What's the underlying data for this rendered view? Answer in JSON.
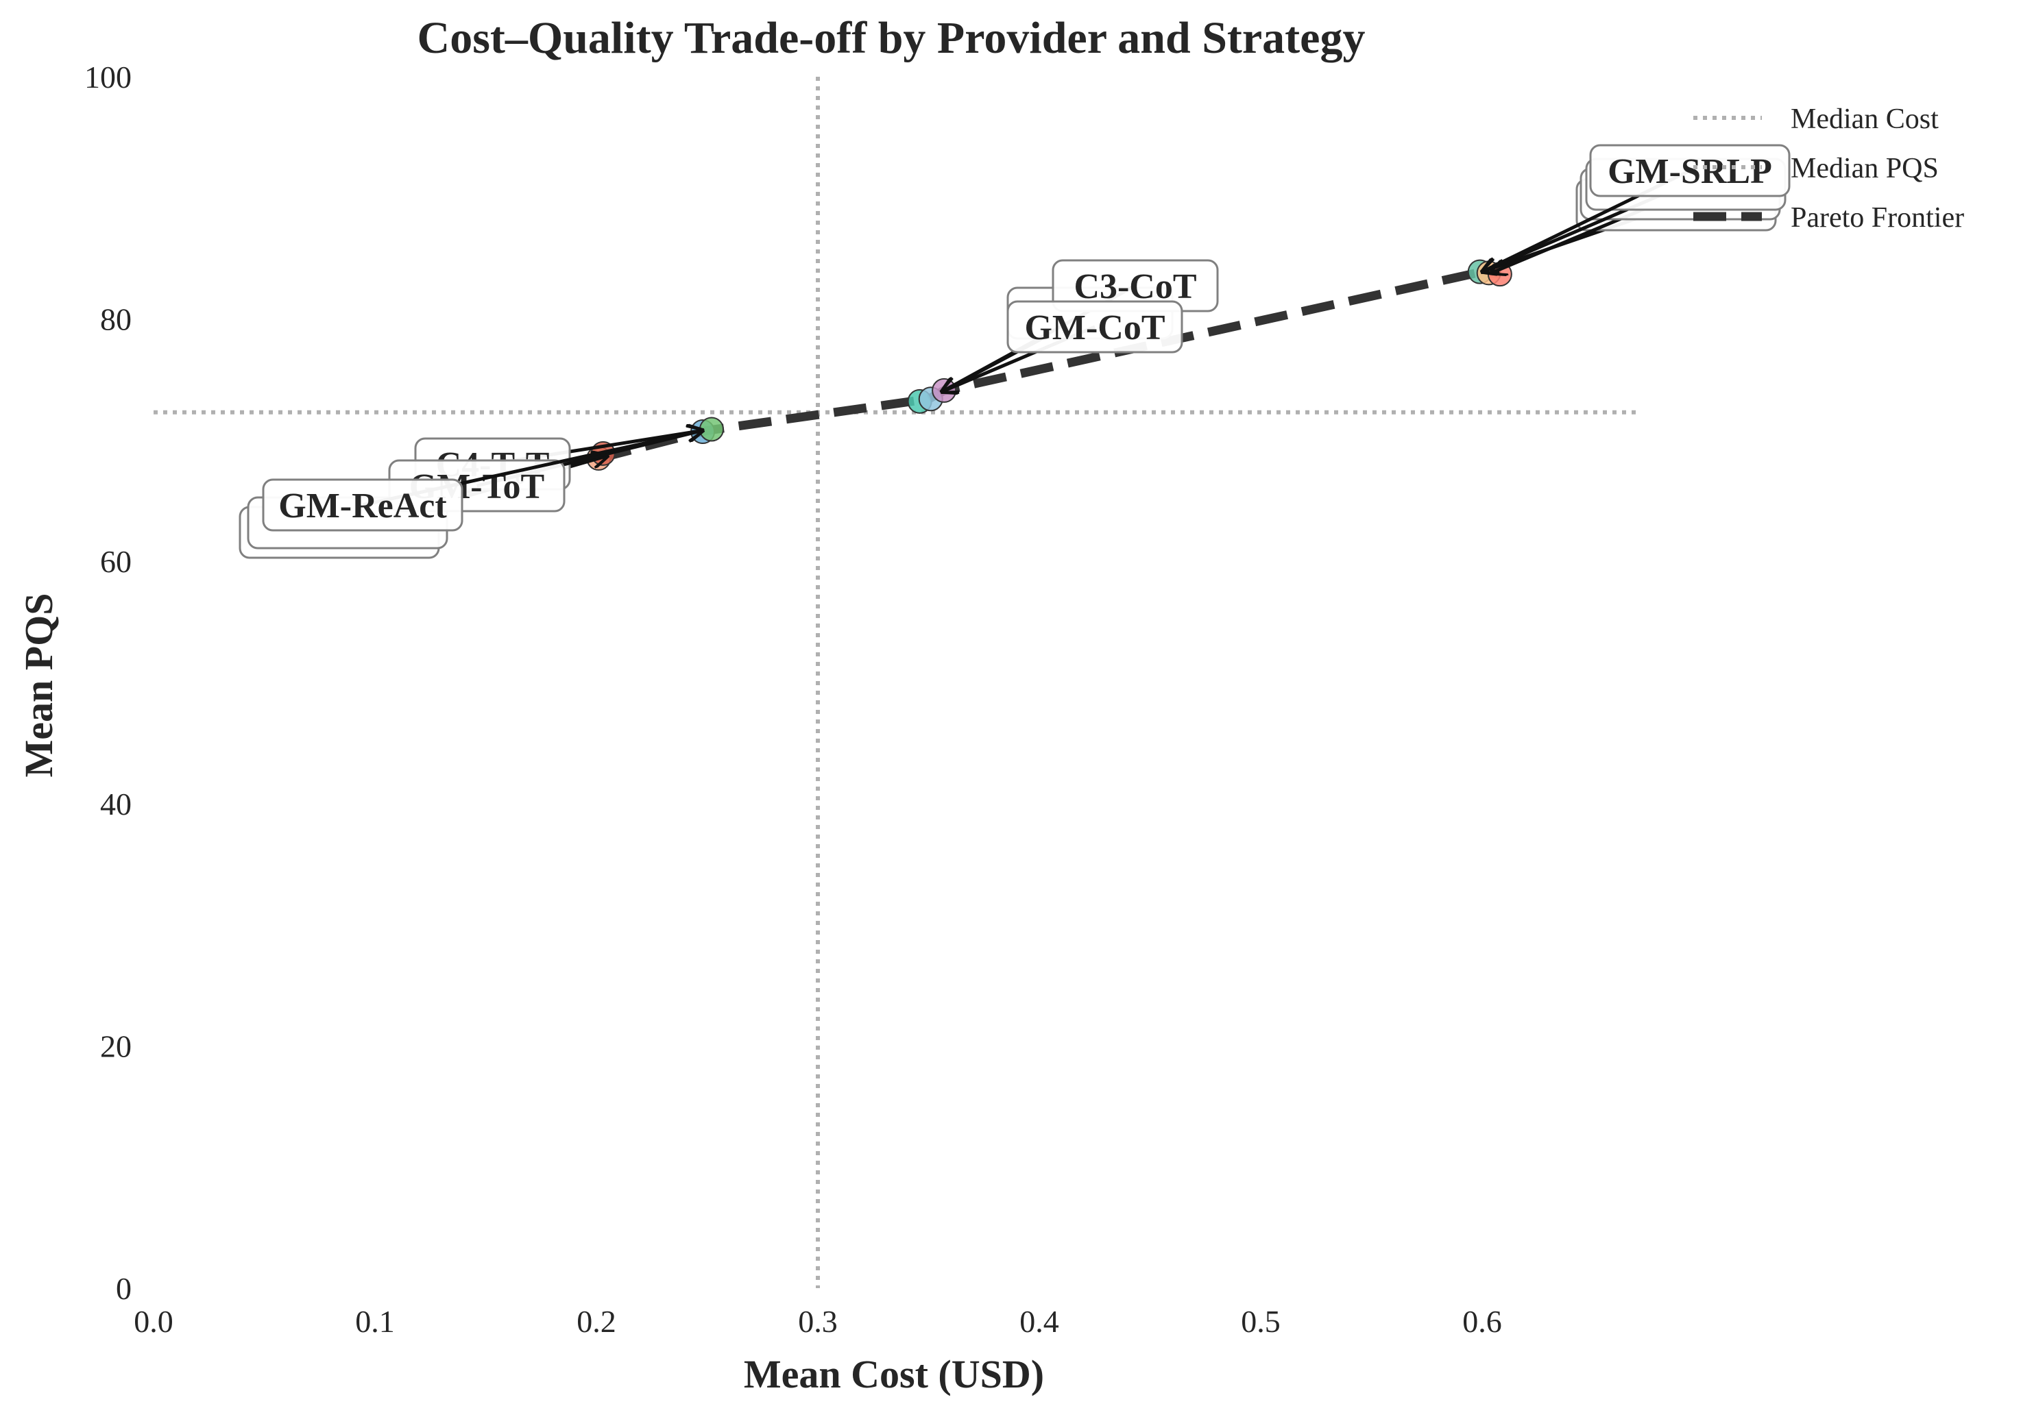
{
  "chart_data": {
    "type": "scatter",
    "title": "Cost–Quality Trade-off by Provider and Strategy",
    "xlabel": "Mean Cost (USD)",
    "ylabel": "Mean PQS",
    "xlim": [
      0.0,
      0.82
    ],
    "ylim": [
      0,
      100
    ],
    "xticks": [
      0.0,
      0.1,
      0.2,
      0.3,
      0.4,
      0.5,
      0.6
    ],
    "xtick_labels": [
      "0.0",
      "0.1",
      "0.2",
      "0.3",
      "0.4",
      "0.5",
      "0.6"
    ],
    "yticks": [
      0,
      20,
      40,
      60,
      80,
      100
    ],
    "ytick_labels": [
      "0",
      "20",
      "40",
      "60",
      "80",
      "100"
    ],
    "grid": false,
    "legend_position": "top-right",
    "legend": [
      "Median Cost",
      "Median PQS",
      "Pareto Frontier"
    ],
    "series": [
      {
        "values": [
          {
            "x": 0.201,
            "y": 68.5,
            "color": "#f4a582"
          },
          {
            "x": 0.203,
            "y": 68.9,
            "color": "#d6604d"
          },
          {
            "x": 0.248,
            "y": 70.7,
            "color": "#6baed6"
          },
          {
            "x": 0.252,
            "y": 70.9,
            "color": "#74c476"
          },
          {
            "x": 0.346,
            "y": 73.2,
            "color": "#4ec9b0"
          },
          {
            "x": 0.351,
            "y": 73.4,
            "color": "#92c5de"
          },
          {
            "x": 0.357,
            "y": 74.1,
            "color": "#c994c7"
          },
          {
            "x": 0.599,
            "y": 83.9,
            "color": "#66c2a5"
          },
          {
            "x": 0.603,
            "y": 83.8,
            "color": "#fdc086"
          },
          {
            "x": 0.608,
            "y": 83.7,
            "color": "#fb8072"
          }
        ]
      }
    ],
    "median_cost": 0.3,
    "median_pqs": 72.3,
    "pareto_frontier": [
      {
        "x": 0.201,
        "y": 68.5
      },
      {
        "x": 0.25,
        "y": 70.8
      },
      {
        "x": 0.35,
        "y": 73.4
      },
      {
        "x": 0.357,
        "y": 74.1
      },
      {
        "x": 0.6,
        "y": 83.9
      },
      {
        "x": 0.608,
        "y": 83.7
      }
    ],
    "annotations": [
      {
        "text": "",
        "target_x": 0.205,
        "target_y": 68.7
      },
      {
        "text": "",
        "target_x": 0.205,
        "target_y": 68.7
      },
      {
        "text": "C4-T₀T",
        "target_x": 0.248,
        "target_y": 70.8
      },
      {
        "text": "GM-ToT",
        "target_x": 0.248,
        "target_y": 70.8
      },
      {
        "text": "GM-ReAct",
        "target_x": 0.248,
        "target_y": 70.8
      },
      {
        "text": "",
        "target_x": 0.356,
        "target_y": 74.0
      },
      {
        "text": "C3-CoT",
        "target_x": 0.356,
        "target_y": 74.0
      },
      {
        "text": "GM-CoT",
        "target_x": 0.356,
        "target_y": 74.0
      },
      {
        "text": "",
        "target_x": 0.6,
        "target_y": 83.9
      },
      {
        "text": "",
        "target_x": 0.604,
        "target_y": 83.8
      },
      {
        "text": "",
        "target_x": 0.6,
        "target_y": 83.9
      },
      {
        "text": "GM-SRLP",
        "target_x": 0.6,
        "target_y": 83.9
      }
    ]
  }
}
